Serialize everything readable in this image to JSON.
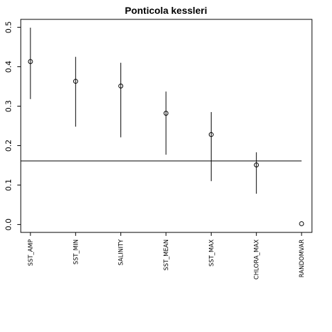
{
  "chart_data": {
    "type": "scatter",
    "title": "Ponticola kessleri",
    "xlabel": "",
    "ylabel": "",
    "categories": [
      "SST_AMP",
      "SST_MIN",
      "SALINITY",
      "SST_MEAN",
      "SST_MAX",
      "CHLORA_MAX",
      "RANDOMVAR"
    ],
    "series": [
      {
        "values": [
          0.413,
          0.363,
          0.351,
          0.282,
          0.228,
          0.151,
          0.002
        ],
        "lower": [
          0.318,
          0.248,
          0.221,
          0.177,
          0.11,
          0.078,
          null
        ],
        "upper": [
          0.499,
          0.425,
          0.41,
          0.337,
          0.285,
          0.183,
          null
        ]
      }
    ],
    "reference_line": 0.161,
    "yticks": [
      "0.0",
      "0.1",
      "0.2",
      "0.3",
      "0.4",
      "0.5"
    ],
    "ylim": [
      -0.02,
      0.52
    ],
    "grid": false,
    "legend": "none"
  }
}
